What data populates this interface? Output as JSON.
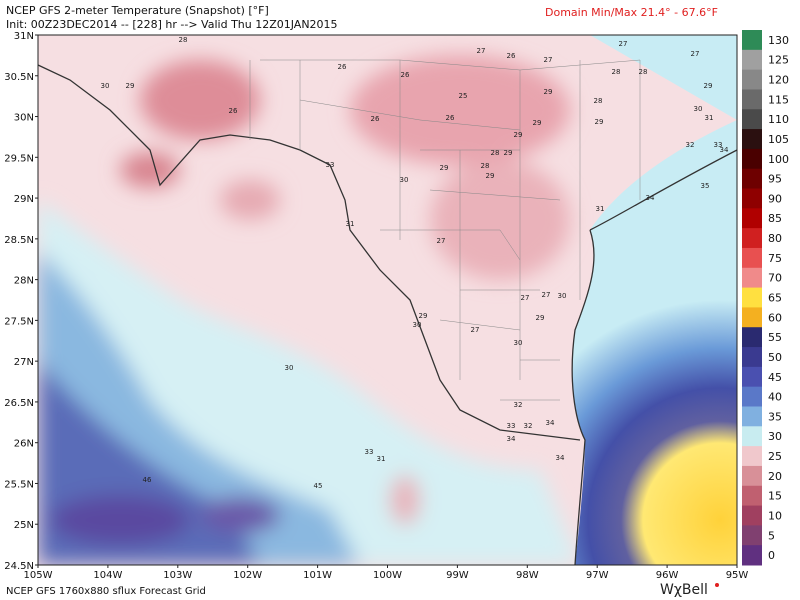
{
  "header": {
    "title": "NCEP GFS 2-meter Temperature (Snapshot) [°F]",
    "init": "Init: 00Z23DEC2014 -- [228] hr --> Valid Thu 12Z01JAN2015",
    "domain": "Domain Min/Max  21.4° - 67.6°F"
  },
  "map": {
    "lat_labels": [
      "31N",
      "30.5N",
      "30N",
      "29.5N",
      "29N",
      "28.5N",
      "28N",
      "27.5N",
      "27N",
      "26.5N",
      "26N",
      "25.5N",
      "25N",
      "24.5N"
    ],
    "lon_labels": [
      "105W",
      "104W",
      "103W",
      "102W",
      "101W",
      "100W",
      "99W",
      "98W",
      "97W",
      "96W",
      "95W"
    ],
    "station_labels": [
      28,
      30,
      29,
      26,
      26,
      26,
      25,
      26,
      26,
      27,
      26,
      27,
      27,
      27,
      28,
      28,
      29,
      28,
      29,
      30,
      31,
      29,
      29,
      29,
      32,
      33,
      34,
      35,
      30,
      29,
      28,
      29,
      28,
      29,
      33,
      31,
      27,
      31,
      34,
      27,
      27,
      30,
      29,
      30,
      27,
      29,
      30,
      30,
      32,
      33,
      32,
      34,
      34,
      34,
      33,
      31,
      46,
      45
    ]
  },
  "colorbar": {
    "levels": [
      {
        "value": 130,
        "color": "#2e8b57"
      },
      {
        "value": 125,
        "color": "#a0a0a0"
      },
      {
        "value": 120,
        "color": "#888888"
      },
      {
        "value": 115,
        "color": "#6a6a6a"
      },
      {
        "value": 110,
        "color": "#4a4a4a"
      },
      {
        "value": 105,
        "color": "#2b1010"
      },
      {
        "value": 100,
        "color": "#4a0000"
      },
      {
        "value": 95,
        "color": "#6e0000"
      },
      {
        "value": 90,
        "color": "#8f0000"
      },
      {
        "value": 85,
        "color": "#b00000"
      },
      {
        "value": 80,
        "color": "#d02020"
      },
      {
        "value": 75,
        "color": "#e85050"
      },
      {
        "value": 70,
        "color": "#f08a8a"
      },
      {
        "value": 65,
        "color": "#ffe040"
      },
      {
        "value": 60,
        "color": "#f4b020"
      },
      {
        "value": 55,
        "color": "#2a2a70"
      },
      {
        "value": 50,
        "color": "#3a3a90"
      },
      {
        "value": 45,
        "color": "#4a50b0"
      },
      {
        "value": 40,
        "color": "#5a78c8"
      },
      {
        "value": 35,
        "color": "#80b0e0"
      },
      {
        "value": 30,
        "color": "#c8ecf0"
      },
      {
        "value": 25,
        "color": "#f0c8cc"
      },
      {
        "value": 20,
        "color": "#d89098"
      },
      {
        "value": 15,
        "color": "#c06070"
      },
      {
        "value": 10,
        "color": "#a04060"
      },
      {
        "value": 5,
        "color": "#804070"
      },
      {
        "value": 0,
        "color": "#603080"
      }
    ]
  },
  "footer": {
    "source": "NCEP GFS 1760x880 sflux Forecast Grid",
    "logo": "WχBell"
  }
}
